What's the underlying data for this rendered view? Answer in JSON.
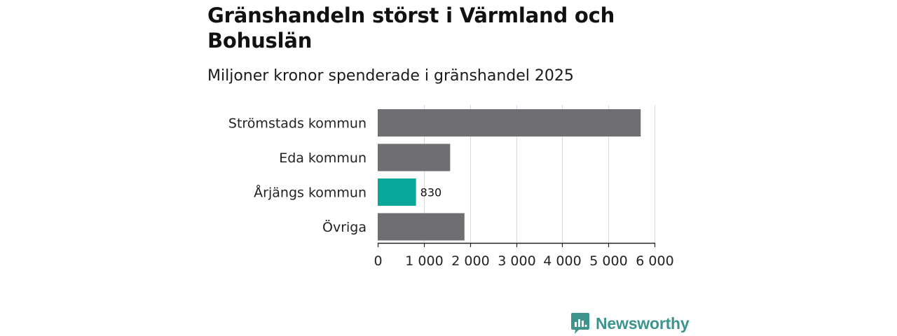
{
  "title": "Gränshandeln störst i Värmland och Bohuslän",
  "subtitle": "Miljoner kronor spenderade i gränshandel 2025",
  "brand": {
    "name": "Newsworthy",
    "icon": "newsworthy-logo-icon",
    "color": "#3d948c"
  },
  "colors": {
    "bar_default": "#6e6e73",
    "bar_highlight": "#0aa89a",
    "grid": "#d9d9d9",
    "axis": "#222222",
    "text": "#222222"
  },
  "chart_data": {
    "type": "bar",
    "orientation": "horizontal",
    "title": "Gränshandeln störst i Värmland och Bohuslän",
    "subtitle": "Miljoner kronor spenderade i gränshandel 2025",
    "xlabel": "",
    "ylabel": "",
    "categories": [
      "Strömstads kommun",
      "Eda kommun",
      "Årjängs kommun",
      "Övriga"
    ],
    "values": [
      5700,
      1570,
      830,
      1880
    ],
    "highlight_index": 2,
    "data_labels": [
      null,
      null,
      "830",
      null
    ],
    "xlim": [
      0,
      6000
    ],
    "xticks": [
      0,
      1000,
      2000,
      3000,
      4000,
      5000,
      6000
    ],
    "xtick_labels": [
      "0",
      "1 000",
      "2 000",
      "3 000",
      "4 000",
      "5 000",
      "6 000"
    ],
    "grid": true,
    "legend": "none"
  }
}
